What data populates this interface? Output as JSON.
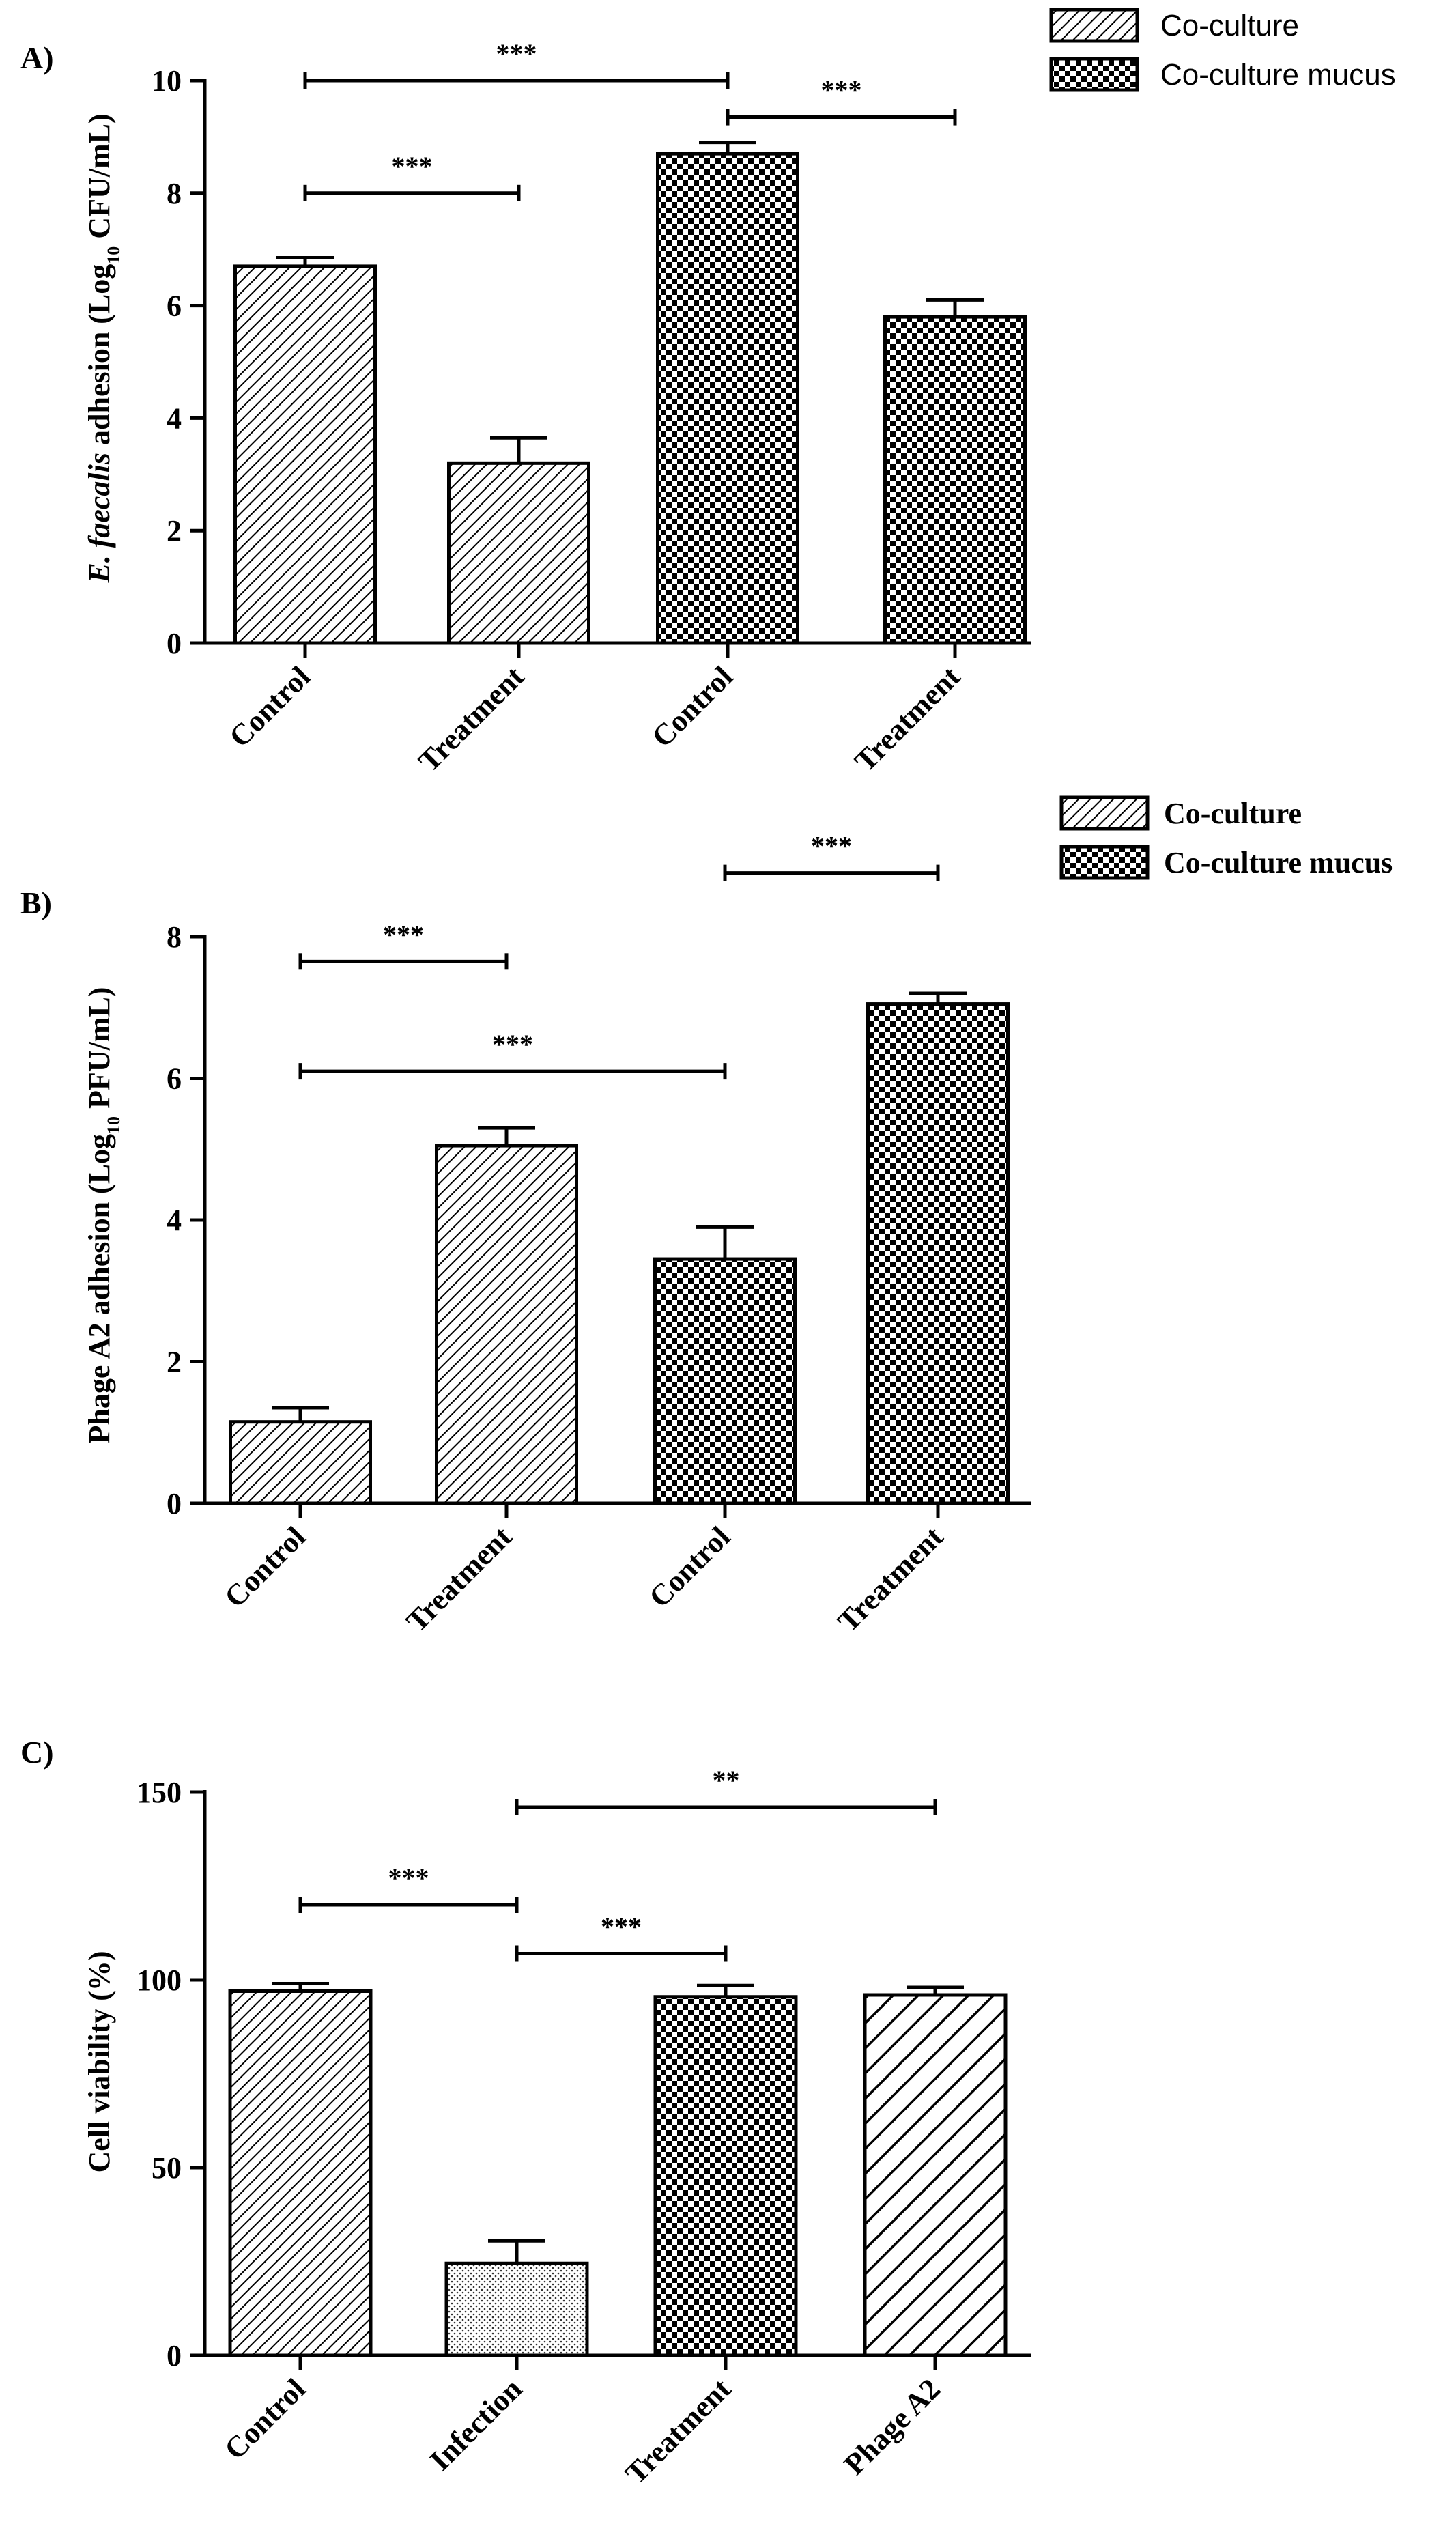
{
  "chart_data": [
    {
      "type": "bar",
      "panel_label": "A)",
      "ylabel": {
        "pre": "E. faecalis",
        "mid": " adhesion (Log",
        "sub": "10",
        "post": " CFU/mL)"
      },
      "ylim": [
        0,
        10
      ],
      "yticks": [
        0,
        2,
        4,
        6,
        8,
        10
      ],
      "categories": [
        "Control",
        "Treatment",
        "Control",
        "Treatment"
      ],
      "values": [
        6.7,
        3.2,
        8.7,
        5.8
      ],
      "errors": [
        0.15,
        0.45,
        0.2,
        0.3
      ],
      "bar_series": [
        "Co-culture",
        "Co-culture",
        "Co-culture mucus",
        "Co-culture mucus"
      ],
      "legend": [
        "Co-culture",
        "Co-culture mucus"
      ],
      "legend_position": "top-right",
      "significance": [
        {
          "from": 0,
          "to": 1,
          "y": 8.0,
          "label": "***"
        },
        {
          "from": 0,
          "to": 2,
          "y": 10.0,
          "label": "***"
        },
        {
          "from": 2,
          "to": 3,
          "y": 9.35,
          "label": "***"
        }
      ]
    },
    {
      "type": "bar",
      "panel_label": "B)",
      "ylabel": {
        "pre": "",
        "mid": "Phage A2 adhesion (Log",
        "sub": "10",
        "post": " PFU/mL)"
      },
      "ylim": [
        0,
        8
      ],
      "yticks": [
        0,
        2,
        4,
        6,
        8
      ],
      "categories": [
        "Control",
        "Treatment",
        "Control",
        "Treatment"
      ],
      "values": [
        1.15,
        5.05,
        3.45,
        7.05
      ],
      "errors": [
        0.2,
        0.25,
        0.45,
        0.15
      ],
      "bar_series": [
        "Co-culture",
        "Co-culture",
        "Co-culture mucus",
        "Co-culture mucus"
      ],
      "legend": [
        "Co-culture",
        "Co-culture mucus"
      ],
      "legend_position": "top-right",
      "significance": [
        {
          "from": 0,
          "to": 1,
          "y": 7.65,
          "label": "***"
        },
        {
          "from": 0,
          "to": 2,
          "y": 6.1,
          "label": "***"
        },
        {
          "from": 2,
          "to": 3,
          "y": 8.9,
          "label": "***"
        }
      ]
    },
    {
      "type": "bar",
      "panel_label": "C)",
      "ylabel": {
        "pre": "",
        "mid": "Cell viability (%)",
        "sub": "",
        "post": ""
      },
      "ylim": [
        0,
        150
      ],
      "yticks": [
        0,
        50,
        100,
        150
      ],
      "categories": [
        "Control",
        "Infection",
        "Treatment",
        "Phage A2"
      ],
      "values": [
        97,
        24.5,
        95.5,
        96
      ],
      "errors": [
        2,
        6,
        3,
        2
      ],
      "bar_series": [
        "",
        "",
        "",
        ""
      ],
      "legend": [],
      "legend_position": "",
      "significance": [
        {
          "from": 0,
          "to": 1,
          "y": 120,
          "label": "***"
        },
        {
          "from": 1,
          "to": 2,
          "y": 107,
          "label": "***"
        },
        {
          "from": 1,
          "to": 3,
          "y": 146,
          "label": "**"
        }
      ]
    }
  ],
  "colors": {
    "ink": "#000000",
    "background": "#ffffff"
  }
}
